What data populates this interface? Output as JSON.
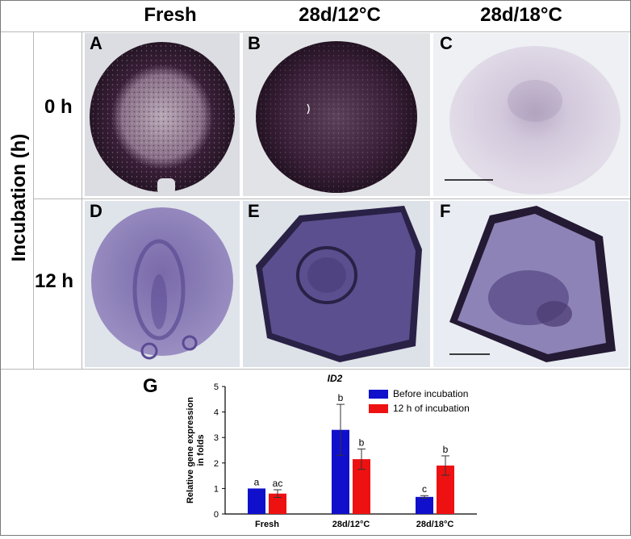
{
  "columns": [
    {
      "title": "Fresh"
    },
    {
      "title": "28d/12°C"
    },
    {
      "title": "28d/18°C"
    }
  ],
  "row_axis_label": "Incubation (h)",
  "rows": [
    {
      "label": "0 h"
    },
    {
      "label": "12 h"
    }
  ],
  "panels": [
    "A",
    "B",
    "C",
    "D",
    "E",
    "F"
  ],
  "chart_letter": "G",
  "colors": {
    "before": "#1010cc",
    "after": "#ee1111",
    "stain": "#3a1f38",
    "stain12": "#5b4a93"
  },
  "chart_data": {
    "type": "bar",
    "title": "ID2",
    "ylabel": "Relative gene expression in folds",
    "ylim": [
      0,
      5
    ],
    "yticks": [
      "0",
      "1",
      "2",
      "3",
      "4",
      "5"
    ],
    "categories": [
      "Fresh",
      "28d/12°C",
      "28d/18°C"
    ],
    "series": [
      {
        "name": "Before incubation",
        "color": "#1010cc",
        "values": [
          1.0,
          3.3,
          0.67
        ],
        "errors": [
          0.0,
          1.0,
          0.05
        ],
        "letters": [
          "a",
          "b",
          "c"
        ]
      },
      {
        "name": "12 h of incubation",
        "color": "#ee1111",
        "values": [
          0.8,
          2.15,
          1.9
        ],
        "errors": [
          0.15,
          0.4,
          0.38
        ],
        "letters": [
          "ac",
          "b",
          "b"
        ]
      }
    ],
    "legend": "top-right"
  }
}
